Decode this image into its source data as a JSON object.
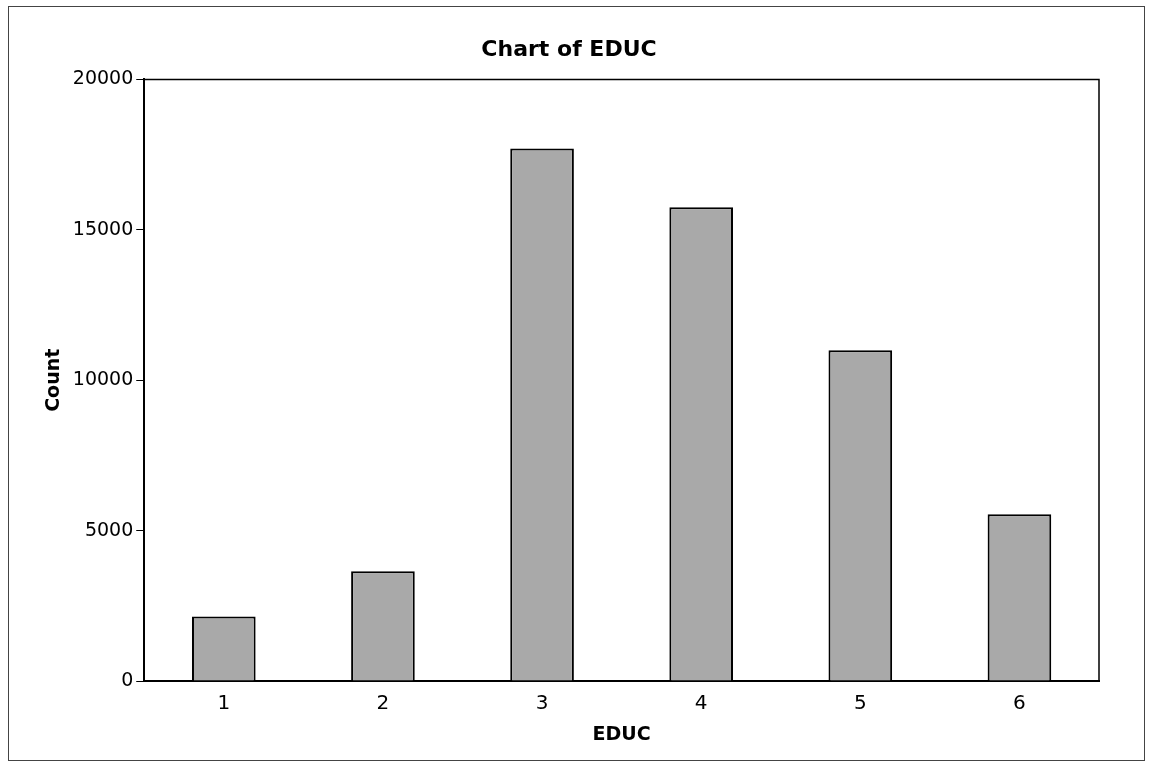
{
  "chart_data": {
    "type": "bar",
    "title": "Chart of EDUC",
    "xlabel": "EDUC",
    "ylabel": "Count",
    "categories": [
      "1",
      "2",
      "3",
      "4",
      "5",
      "6"
    ],
    "values": [
      2150,
      3650,
      17700,
      15750,
      11000,
      5550
    ],
    "color": "#a9a9a9",
    "ylim": [
      0,
      20000
    ],
    "yticks": [
      0,
      5000,
      10000,
      15000,
      20000
    ],
    "grid": false,
    "legend": false
  }
}
